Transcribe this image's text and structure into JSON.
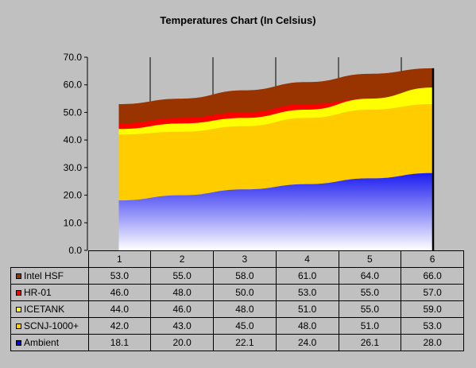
{
  "chart_data": {
    "type": "area",
    "title": "Temperatures Chart (In Celsius)",
    "categories": [
      "1",
      "2",
      "3",
      "4",
      "5",
      "6"
    ],
    "ylim": [
      0,
      70
    ],
    "yticks": [
      "0.0",
      "10.0",
      "20.0",
      "30.0",
      "40.0",
      "50.0",
      "60.0",
      "70.0"
    ],
    "grid": "vertical",
    "legend": "data-table",
    "series": [
      {
        "name": "Intel HSF",
        "color": "#993300",
        "values": [
          53.0,
          55.0,
          58.0,
          61.0,
          64.0,
          66.0
        ],
        "labels": [
          "53.0",
          "55.0",
          "58.0",
          "61.0",
          "64.0",
          "66.0"
        ]
      },
      {
        "name": "HR-01",
        "color": "#ff0000",
        "values": [
          46.0,
          48.0,
          50.0,
          53.0,
          55.0,
          57.0
        ],
        "labels": [
          "46.0",
          "48.0",
          "50.0",
          "53.0",
          "55.0",
          "57.0"
        ]
      },
      {
        "name": "ICETANK",
        "color": "#ffff00",
        "values": [
          44.0,
          46.0,
          48.0,
          51.0,
          55.0,
          59.0
        ],
        "labels": [
          "44.0",
          "46.0",
          "48.0",
          "51.0",
          "55.0",
          "59.0"
        ]
      },
      {
        "name": "SCNJ-1000+",
        "color": "#ffcc00",
        "values": [
          42.0,
          43.0,
          45.0,
          48.0,
          51.0,
          53.0
        ],
        "labels": [
          "42.0",
          "43.0",
          "45.0",
          "48.0",
          "51.0",
          "53.0"
        ]
      },
      {
        "name": "Ambient",
        "color": "#0000ff",
        "values": [
          18.1,
          20.0,
          22.1,
          24.0,
          26.1,
          28.0
        ],
        "labels": [
          "18.1",
          "20.0",
          "22.1",
          "24.0",
          "26.1",
          "28.0"
        ]
      }
    ]
  }
}
